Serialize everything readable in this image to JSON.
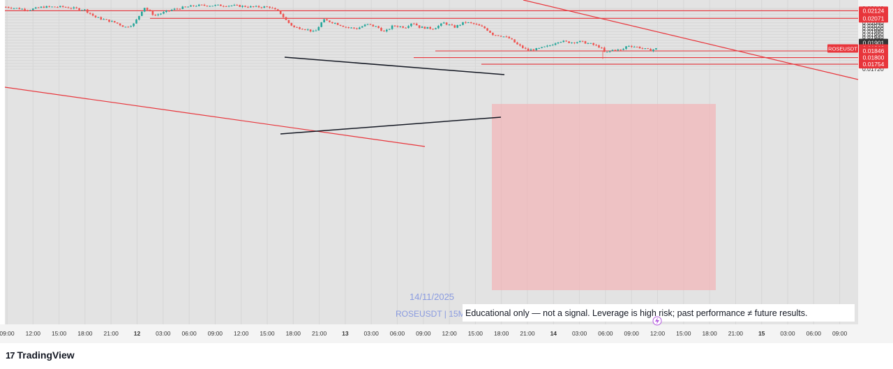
{
  "chart_data": {
    "type": "candlestick",
    "symbol": "ROSEUSDT",
    "price_ticks": [
      "0.02140",
      "0.02120",
      "0.02100",
      "0.02080",
      "0.02060",
      "0.02040",
      "0.02020",
      "0.02000",
      "0.01980",
      "0.01960",
      "0.01940",
      "0.01920",
      "0.01900",
      "0.01880",
      "0.01860",
      "0.01840",
      "0.01820",
      "0.01800",
      "0.01780",
      "0.01760",
      "0.01740",
      "0.01720"
    ],
    "time_ticks": [
      "09:00",
      "12:00",
      "15:00",
      "18:00",
      "21:00",
      "12",
      "03:00",
      "06:00",
      "09:00",
      "12:00",
      "15:00",
      "18:00",
      "21:00",
      "13",
      "03:00",
      "06:00",
      "09:00",
      "12:00",
      "15:00",
      "18:00",
      "21:00",
      "14",
      "03:00",
      "06:00",
      "09:00",
      "12:00",
      "15:00",
      "18:00",
      "21:00",
      "15",
      "03:00",
      "06:00",
      "09:00"
    ],
    "price_tags": [
      {
        "label": "0.02124",
        "value": 0.02124,
        "color": "#e8353b"
      },
      {
        "label": "0.02071",
        "value": 0.02071,
        "color": "#e8353b"
      },
      {
        "label": "0.01901",
        "value": 0.01901,
        "color": "#333333"
      },
      {
        "label": "0.01863",
        "value": 0.01863,
        "color": "#e8353b",
        "prefix": "ROSEUSDT"
      },
      {
        "label": "0.01846",
        "value": 0.01846,
        "color": "#e8353b"
      },
      {
        "label": "0.01800",
        "value": 0.018,
        "color": "#e8353b"
      },
      {
        "label": "0.01754",
        "value": 0.01754,
        "color": "#e8353b"
      }
    ],
    "watermark_date": "14/11/2025",
    "watermark_symbol": "ROSEUSDT | 15M",
    "disclaimer": "Educational only — not a signal. Leverage is high risk; past performance ≠ future results.",
    "colors": {
      "up": "#26a69a",
      "down": "#ef5350",
      "line": "#e8353b",
      "zone": "#f2b3b7"
    }
  },
  "footer": {
    "logo_text": "TradingView"
  }
}
